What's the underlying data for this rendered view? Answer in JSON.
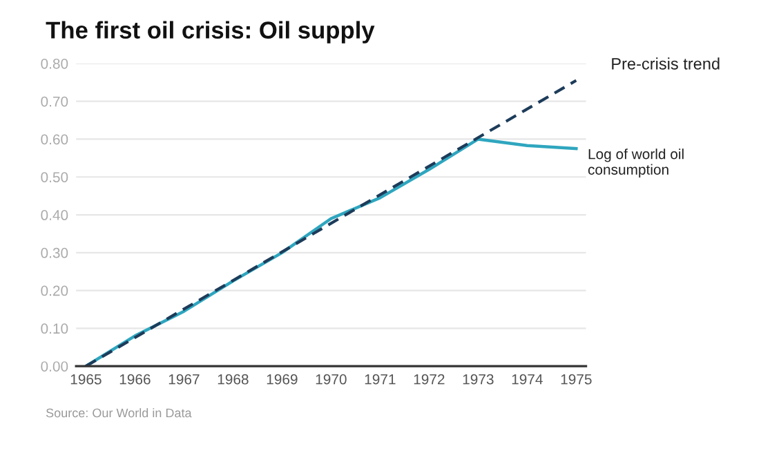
{
  "chart_data": {
    "type": "line",
    "title": "The first oil crisis: Oil supply",
    "x": [
      1965,
      1966,
      1967,
      1968,
      1969,
      1970,
      1971,
      1972,
      1973,
      1974,
      1975
    ],
    "series": [
      {
        "name": "Log of world oil consumption",
        "color": "#2fa6bf",
        "line_style": "solid",
        "values": [
          0.0,
          0.08,
          0.145,
          0.225,
          0.3,
          0.39,
          0.445,
          0.52,
          0.6,
          0.583,
          0.575
        ]
      },
      {
        "name": "Pre-crisis trend",
        "color": "#1d3c5a",
        "line_style": "dashed",
        "x": [
          1965,
          1975
        ],
        "values": [
          0.0,
          0.755
        ]
      }
    ],
    "xlim": [
      1964.8,
      1975.2
    ],
    "xticks": [
      1965,
      1966,
      1967,
      1968,
      1969,
      1970,
      1971,
      1972,
      1973,
      1974,
      1975
    ],
    "ylim": [
      0,
      0.8
    ],
    "yticks": [
      {
        "value": 0,
        "label": "0.00"
      },
      {
        "value": 0.1,
        "label": "0.10"
      },
      {
        "value": 0.2,
        "label": "0.20"
      },
      {
        "value": 0.3,
        "label": "0.30"
      },
      {
        "value": 0.4,
        "label": "0.40"
      },
      {
        "value": 0.5,
        "label": "0.50"
      },
      {
        "value": 0.6,
        "label": "0.60"
      },
      {
        "value": 0.7,
        "label": "0.70"
      },
      {
        "value": 0.8,
        "label": "0.80"
      }
    ],
    "grid": "y",
    "legend": false,
    "marker": "none",
    "annotations": [
      "Source: Our World in Data"
    ]
  }
}
